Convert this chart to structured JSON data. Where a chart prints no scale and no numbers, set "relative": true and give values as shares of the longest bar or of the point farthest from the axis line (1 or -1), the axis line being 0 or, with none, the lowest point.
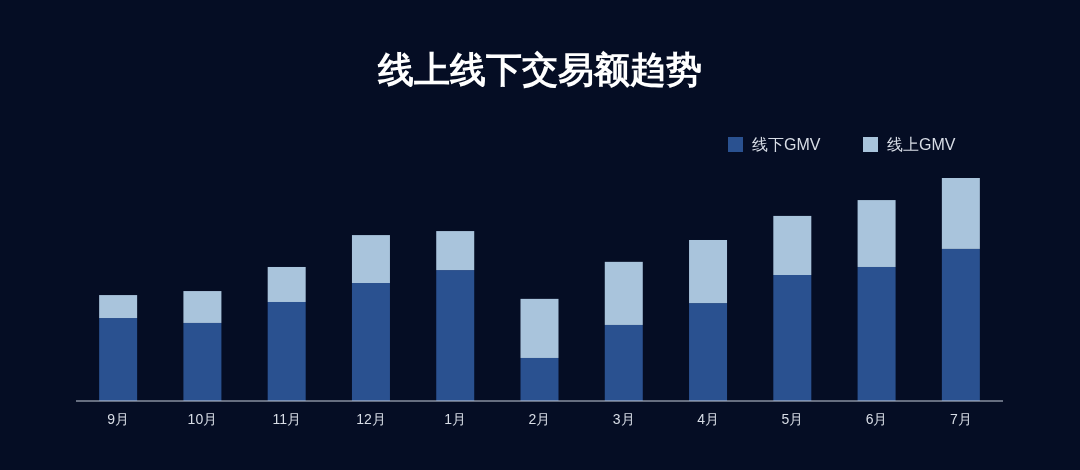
{
  "chart_data": {
    "type": "bar",
    "title": "线上线下交易额趋势",
    "stacked": true,
    "relative": true,
    "legend": "top right",
    "grid": false,
    "categories": [
      "9月",
      "10月",
      "11月",
      "12月",
      "1月",
      "2月",
      "3月",
      "4月",
      "5月",
      "6月",
      "7月"
    ],
    "series": [
      {
        "name": "线下GMV",
        "color": "#2a5190",
        "values": [
          0.372,
          0.35,
          0.444,
          0.529,
          0.587,
          0.193,
          0.341,
          0.439,
          0.565,
          0.601,
          0.682
        ]
      },
      {
        "name": "线上GMV",
        "color": "#a9c4dc",
        "values": [
          0.103,
          0.143,
          0.157,
          0.215,
          0.175,
          0.265,
          0.283,
          0.283,
          0.265,
          0.3,
          0.318
        ]
      }
    ]
  }
}
